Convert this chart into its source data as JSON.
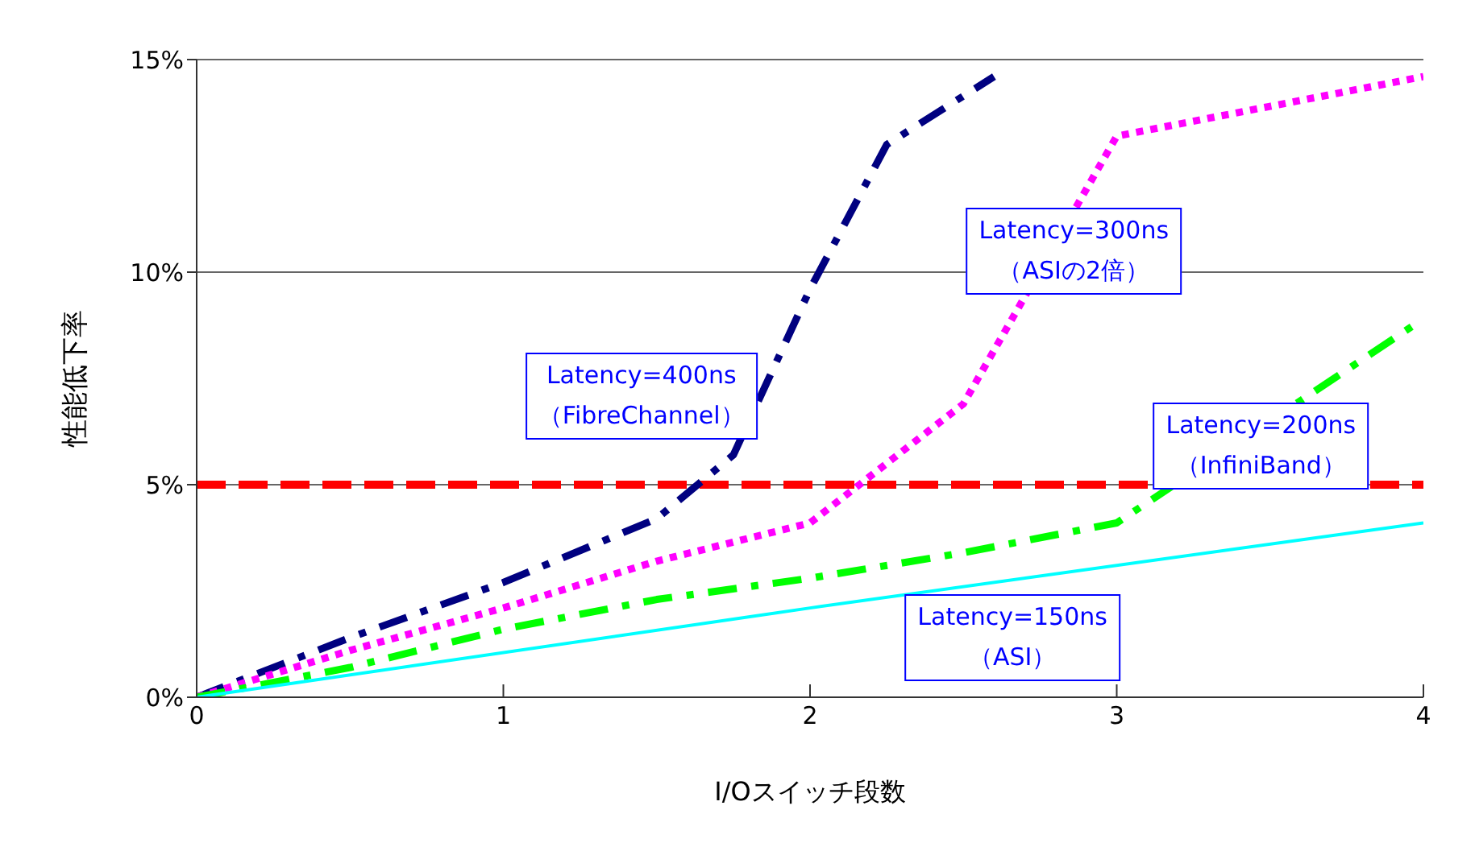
{
  "chart_data": {
    "type": "line",
    "xlabel": "I/Oスイッチ段数",
    "ylabel": "性能低下率",
    "xlim": [
      0,
      4
    ],
    "xticks": [
      0,
      1,
      2,
      3,
      4
    ],
    "ylim": [
      0,
      15
    ],
    "yticks": [
      {
        "value": 0,
        "label": "0%"
      },
      {
        "value": 5,
        "label": "5%"
      },
      {
        "value": 10,
        "label": "10%"
      },
      {
        "value": 15,
        "label": "15%"
      }
    ],
    "grid": "y",
    "legend": false,
    "marker": "none",
    "series": [
      {
        "name": "Latency=400ns\n（FibreChannel）",
        "color": "#000080",
        "line_style": "dashed",
        "x": [
          0,
          0.5,
          1,
          1.5,
          1.75,
          2,
          2.25,
          2.6
        ],
        "values": [
          0,
          1.4,
          2.7,
          4.2,
          5.7,
          9.6,
          13.0,
          14.6
        ]
      },
      {
        "name": "Latency=300ns\n（ASIの2倍）",
        "color": "#ff00ff",
        "line_style": "dotted",
        "x": [
          0,
          0.5,
          1,
          1.5,
          2,
          2.25,
          2.5,
          3,
          3.5,
          4
        ],
        "values": [
          0,
          1.1,
          2.1,
          3.2,
          4.1,
          5.5,
          6.9,
          13.2,
          13.9,
          14.6
        ]
      },
      {
        "name": "Latency=200ns\n（InfiniBand）",
        "color": "#00ff00",
        "line_style": "dashed",
        "x": [
          0,
          0.5,
          1,
          1.5,
          2,
          2.5,
          3,
          4
        ],
        "values": [
          0,
          0.7,
          1.6,
          2.3,
          2.8,
          3.4,
          4.1,
          8.9
        ]
      },
      {
        "name": "Latency=150ns\n（ASI）",
        "color": "#00ffff",
        "line_style": "solid",
        "x": [
          0,
          2,
          4
        ],
        "values": [
          0,
          2.1,
          4.1
        ]
      }
    ],
    "ref_lines": [
      {
        "axis": "y",
        "value": 5,
        "color": "#ff0000",
        "line_style": "dashed"
      }
    ]
  }
}
